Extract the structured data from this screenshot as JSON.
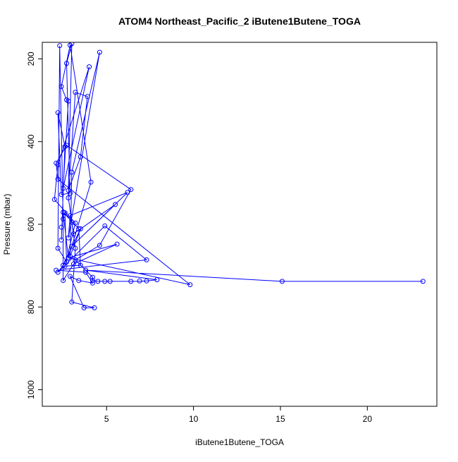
{
  "chart_data": {
    "type": "line",
    "title": "ATOM4 Northeast_Pacific_2 iButene1Butene_TOGA",
    "xlabel": "iButene1Butene_TOGA",
    "ylabel": "Pressure (mbar)",
    "xlim": [
      1.3,
      24.0
    ],
    "ylim": [
      1040,
      160
    ],
    "y_reversed": true,
    "grid": false,
    "xticks": [
      5,
      10,
      15,
      20
    ],
    "yticks": [
      200,
      400,
      600,
      800,
      1000
    ],
    "series_color": "#0000ff",
    "marker": "open-circle",
    "legend": "none",
    "series": [
      {
        "points": [
          [
            3.7,
            802
          ],
          [
            4.3,
            802
          ],
          [
            3.0,
            788
          ],
          [
            4.2,
            742
          ],
          [
            3.4,
            736
          ],
          [
            2.5,
            736
          ],
          [
            4.2,
            728
          ],
          [
            2.9,
            726
          ],
          [
            2.2,
            716
          ],
          [
            3.8,
            716
          ],
          [
            2.1,
            711
          ],
          [
            3.8,
            711
          ],
          [
            2.6,
            701
          ],
          [
            3.5,
            699
          ],
          [
            2.5,
            699
          ],
          [
            3.1,
            696
          ],
          [
            2.7,
            691
          ],
          [
            7.3,
            686
          ],
          [
            3.2,
            686
          ],
          [
            2.8,
            681
          ],
          [
            2.9,
            677
          ],
          [
            2.2,
            658
          ],
          [
            3.2,
            658
          ],
          [
            3.0,
            653
          ],
          [
            4.6,
            651
          ],
          [
            5.6,
            648
          ],
          [
            2.4,
            638
          ],
          [
            2.8,
            633
          ],
          [
            3.1,
            623
          ],
          [
            3.5,
            611
          ],
          [
            3.4,
            611
          ],
          [
            2.4,
            607
          ],
          [
            4.9,
            604
          ],
          [
            3.2,
            597
          ],
          [
            3.0,
            595
          ],
          [
            2.5,
            587
          ],
          [
            2.9,
            579
          ],
          [
            2.6,
            572
          ],
          [
            2.5,
            571
          ],
          [
            5.5,
            552
          ],
          [
            2.0,
            540
          ],
          [
            2.8,
            536
          ],
          [
            2.9,
            525
          ],
          [
            2.4,
            528
          ],
          [
            6.2,
            523
          ],
          [
            2.8,
            518
          ],
          [
            6.4,
            516
          ],
          [
            2.5,
            513
          ],
          [
            4.1,
            498
          ],
          [
            2.2,
            491
          ],
          [
            3.0,
            474
          ],
          [
            2.2,
            456
          ],
          [
            2.1,
            452
          ],
          [
            3.5,
            437
          ],
          [
            2.6,
            412
          ],
          [
            2.7,
            409
          ],
          [
            2.2,
            330
          ],
          [
            2.8,
            302
          ],
          [
            2.7,
            299
          ],
          [
            3.9,
            291
          ],
          [
            3.2,
            281
          ],
          [
            2.4,
            267
          ],
          [
            4.0,
            219
          ],
          [
            2.7,
            211
          ],
          [
            4.6,
            184
          ],
          [
            2.3,
            168
          ],
          [
            2.9,
            167
          ],
          [
            3.0,
            163
          ],
          [
            9.8,
            746
          ],
          [
            15.1,
            738
          ],
          [
            23.2,
            738
          ],
          [
            7.9,
            734
          ],
          [
            7.3,
            737
          ],
          [
            6.9,
            737
          ],
          [
            6.4,
            738
          ],
          [
            5.2,
            738
          ],
          [
            4.9,
            738
          ],
          [
            4.5,
            738
          ],
          [
            4.2,
            736
          ]
        ],
        "path": [
          [
            2.4,
            638
          ],
          [
            2.6,
            412
          ],
          [
            2.2,
            330
          ],
          [
            2.4,
            528
          ],
          [
            2.9,
            525
          ],
          [
            2.7,
            211
          ],
          [
            3.0,
            163
          ],
          [
            2.8,
            518
          ],
          [
            3.5,
            437
          ],
          [
            3.9,
            291
          ],
          [
            3.2,
            281
          ],
          [
            2.8,
            536
          ],
          [
            3.1,
            623
          ],
          [
            5.5,
            552
          ],
          [
            3.0,
            653
          ],
          [
            6.2,
            523
          ],
          [
            2.9,
            579
          ],
          [
            2.8,
            633
          ],
          [
            4.6,
            184
          ],
          [
            3.0,
            474
          ],
          [
            2.9,
            677
          ],
          [
            3.5,
            611
          ],
          [
            2.5,
            699
          ],
          [
            2.2,
            716
          ],
          [
            4.9,
            604
          ],
          [
            7.3,
            686
          ],
          [
            2.1,
            711
          ],
          [
            3.8,
            716
          ],
          [
            4.2,
            742
          ],
          [
            3.4,
            736
          ],
          [
            2.9,
            726
          ],
          [
            3.7,
            802
          ],
          [
            4.3,
            802
          ],
          [
            3.0,
            788
          ],
          [
            3.2,
            658
          ],
          [
            3.0,
            595
          ],
          [
            2.6,
            572
          ],
          [
            2.7,
            691
          ],
          [
            2.2,
            658
          ],
          [
            2.3,
            168
          ],
          [
            2.5,
            587
          ],
          [
            2.5,
            736
          ],
          [
            3.1,
            696
          ],
          [
            5.6,
            648
          ],
          [
            2.8,
            681
          ],
          [
            4.1,
            498
          ],
          [
            2.9,
            167
          ],
          [
            2.4,
            267
          ],
          [
            2.7,
            299
          ],
          [
            2.8,
            302
          ],
          [
            2.5,
            513
          ],
          [
            4.0,
            219
          ],
          [
            2.2,
            456
          ],
          [
            2.0,
            540
          ],
          [
            3.2,
            597
          ],
          [
            2.6,
            701
          ],
          [
            3.5,
            699
          ],
          [
            3.4,
            611
          ],
          [
            2.5,
            571
          ],
          [
            2.8,
            681
          ],
          [
            9.8,
            746
          ],
          [
            2.2,
            491
          ],
          [
            2.1,
            452
          ],
          [
            2.7,
            409
          ],
          [
            6.4,
            516
          ],
          [
            4.6,
            651
          ],
          [
            3.2,
            686
          ],
          [
            4.2,
            728
          ],
          [
            4.2,
            736
          ],
          [
            4.5,
            738
          ],
          [
            4.9,
            738
          ],
          [
            5.2,
            738
          ],
          [
            6.4,
            738
          ],
          [
            6.9,
            738
          ],
          [
            7.3,
            737
          ],
          [
            7.9,
            734
          ],
          [
            3.8,
            711
          ],
          [
            15.1,
            738
          ],
          [
            23.2,
            738
          ]
        ]
      }
    ]
  }
}
